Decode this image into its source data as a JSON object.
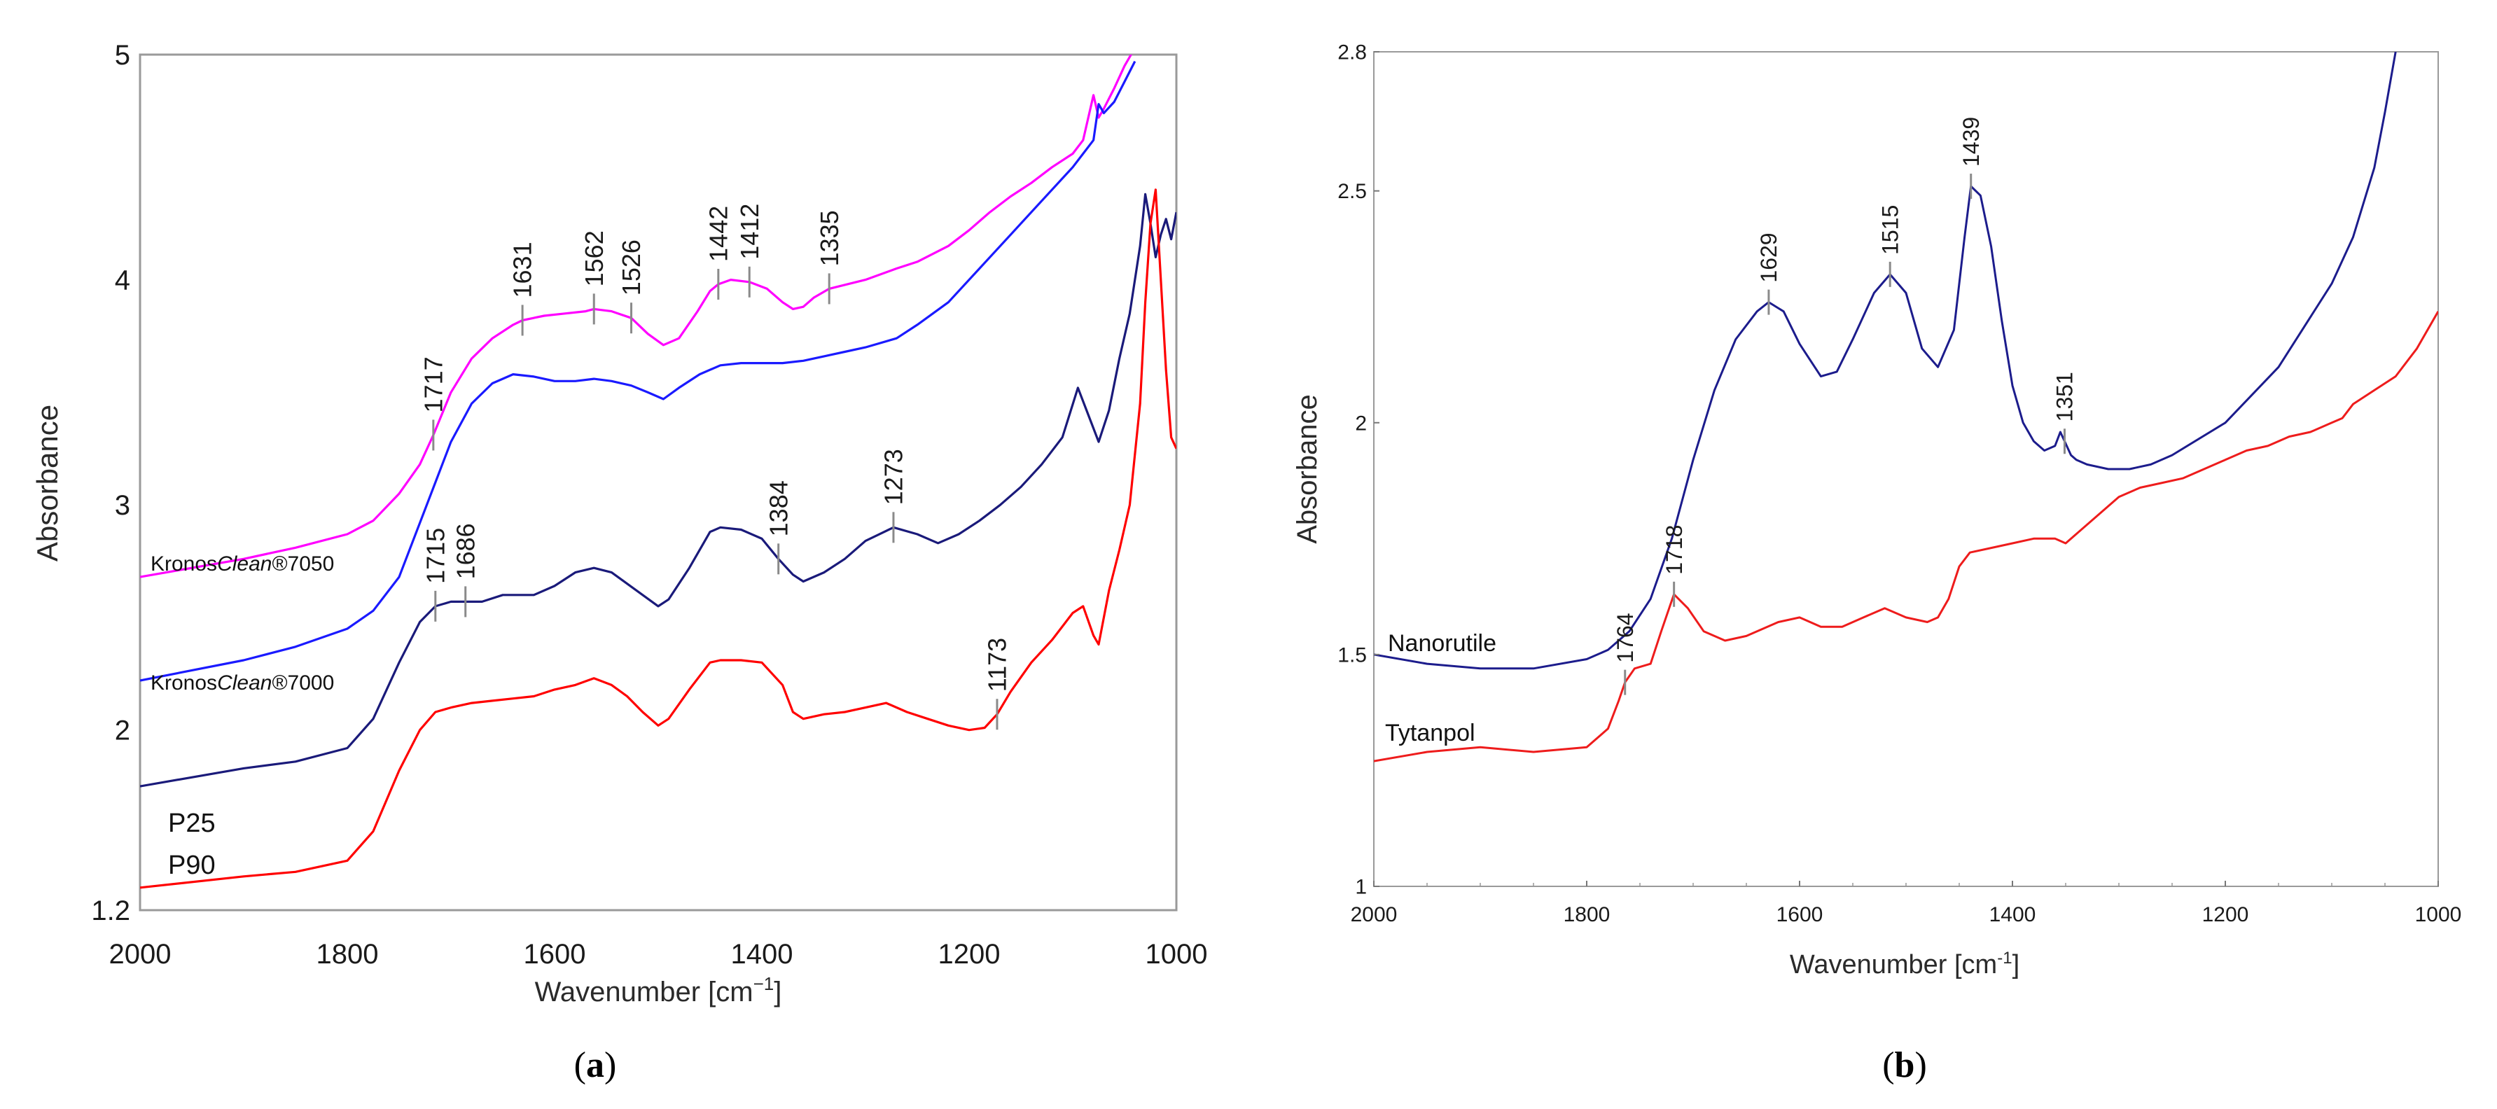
{
  "panels": [
    {
      "caption_open": "(",
      "caption": "a",
      "caption_close": ")",
      "chart_data": {
        "type": "line",
        "xlabel": "Wavenumber [cm",
        "xlabel_sup": "−1",
        "xlabel_end": "]",
        "ylabel": "Absorbance",
        "xlim": [
          2000,
          1000
        ],
        "ylim": [
          1.2,
          5
        ],
        "x_ticks": [
          "2000",
          "1800",
          "1600",
          "1400",
          "1200",
          "1000"
        ],
        "y_ticks": [
          {
            "value": 1.2,
            "label": "1.2"
          },
          {
            "value": 2,
            "label": "2"
          },
          {
            "value": 3,
            "label": "3"
          },
          {
            "value": 4,
            "label": "4"
          },
          {
            "value": 5,
            "label": "5"
          }
        ],
        "series": [
          {
            "name": "KronosClean®7050",
            "color": "#ff00ff",
            "label": {
              "pre": "Kronos",
              "italic": "Clean",
              "post": "®7050"
            },
            "x": [
              2000,
              1900,
              1850,
              1800,
              1775,
              1750,
              1730,
              1717,
              1700,
              1680,
              1660,
              1640,
              1631,
              1610,
              1590,
              1570,
              1562,
              1545,
              1526,
              1510,
              1495,
              1480,
              1462,
              1450,
              1442,
              1430,
              1412,
              1395,
              1380,
              1370,
              1360,
              1350,
              1335,
              1300,
              1270,
              1250,
              1220,
              1200,
              1180,
              1160,
              1140,
              1120,
              1100,
              1090,
              1080,
              1075,
              1070,
              1060,
              1050,
              1040
            ],
            "y": [
              2.68,
              2.76,
              2.81,
              2.87,
              2.93,
              3.05,
              3.18,
              3.31,
              3.5,
              3.65,
              3.74,
              3.8,
              3.82,
              3.84,
              3.85,
              3.86,
              3.87,
              3.86,
              3.83,
              3.76,
              3.71,
              3.74,
              3.86,
              3.95,
              3.98,
              4.0,
              3.99,
              3.96,
              3.9,
              3.87,
              3.88,
              3.92,
              3.96,
              4.0,
              4.05,
              4.08,
              4.15,
              4.22,
              4.3,
              4.37,
              4.43,
              4.5,
              4.56,
              4.62,
              4.82,
              4.72,
              4.76,
              4.85,
              4.95,
              5.03
            ]
          },
          {
            "name": "KronosClean®7000",
            "color": "#1a1aff",
            "label": {
              "pre": "Kronos",
              "italic": "Clean",
              "post": "®7000"
            },
            "x": [
              2000,
              1900,
              1850,
              1800,
              1775,
              1750,
              1730,
              1715,
              1700,
              1680,
              1660,
              1640,
              1620,
              1600,
              1580,
              1562,
              1545,
              1526,
              1510,
              1495,
              1480,
              1460,
              1440,
              1420,
              1412,
              1395,
              1380,
              1360,
              1340,
              1320,
              1300,
              1270,
              1250,
              1220,
              1200,
              1180,
              1160,
              1140,
              1120,
              1100,
              1090,
              1080,
              1075,
              1070,
              1060,
              1050,
              1040
            ],
            "y": [
              2.22,
              2.31,
              2.37,
              2.45,
              2.53,
              2.68,
              2.92,
              3.1,
              3.28,
              3.45,
              3.54,
              3.58,
              3.57,
              3.55,
              3.55,
              3.56,
              3.55,
              3.53,
              3.5,
              3.47,
              3.52,
              3.58,
              3.62,
              3.63,
              3.63,
              3.63,
              3.63,
              3.64,
              3.66,
              3.68,
              3.7,
              3.74,
              3.8,
              3.9,
              4.0,
              4.1,
              4.2,
              4.3,
              4.4,
              4.5,
              4.56,
              4.62,
              4.78,
              4.74,
              4.79,
              4.88,
              4.97
            ]
          },
          {
            "name": "P25",
            "color": "#1a1a7a",
            "label": {
              "pre": "P25",
              "italic": "",
              "post": ""
            },
            "x": [
              2000,
              1900,
              1850,
              1800,
              1775,
              1750,
              1730,
              1715,
              1700,
              1686,
              1670,
              1650,
              1620,
              1600,
              1580,
              1562,
              1545,
              1530,
              1515,
              1500,
              1490,
              1470,
              1450,
              1440,
              1420,
              1400,
              1384,
              1370,
              1360,
              1340,
              1320,
              1300,
              1273,
              1250,
              1230,
              1210,
              1190,
              1170,
              1150,
              1130,
              1110,
              1095,
              1085,
              1075,
              1065,
              1055,
              1045,
              1035,
              1030,
              1025,
              1020,
              1015,
              1010,
              1005,
              1000
            ],
            "y": [
              1.75,
              1.83,
              1.86,
              1.92,
              2.05,
              2.3,
              2.48,
              2.55,
              2.57,
              2.57,
              2.57,
              2.6,
              2.6,
              2.64,
              2.7,
              2.72,
              2.7,
              2.65,
              2.6,
              2.55,
              2.58,
              2.72,
              2.88,
              2.9,
              2.89,
              2.85,
              2.76,
              2.69,
              2.66,
              2.7,
              2.76,
              2.84,
              2.9,
              2.87,
              2.83,
              2.87,
              2.93,
              3.0,
              3.08,
              3.18,
              3.3,
              3.52,
              3.4,
              3.28,
              3.42,
              3.65,
              3.85,
              4.15,
              4.38,
              4.25,
              4.1,
              4.2,
              4.27,
              4.18,
              4.3
            ]
          },
          {
            "name": "P90",
            "color": "#ff0000",
            "label": {
              "pre": "P90",
              "italic": "",
              "post": ""
            },
            "x": [
              2000,
              1900,
              1850,
              1800,
              1775,
              1750,
              1730,
              1715,
              1700,
              1680,
              1660,
              1640,
              1620,
              1600,
              1580,
              1562,
              1545,
              1530,
              1515,
              1500,
              1490,
              1470,
              1450,
              1440,
              1420,
              1400,
              1380,
              1370,
              1360,
              1340,
              1320,
              1300,
              1280,
              1260,
              1240,
              1220,
              1200,
              1185,
              1173,
              1160,
              1140,
              1120,
              1100,
              1090,
              1080,
              1075,
              1065,
              1055,
              1045,
              1035,
              1030,
              1025,
              1020,
              1015,
              1010,
              1005,
              1000
            ],
            "y": [
              1.3,
              1.35,
              1.37,
              1.42,
              1.55,
              1.82,
              2.0,
              2.08,
              2.1,
              2.12,
              2.13,
              2.14,
              2.15,
              2.18,
              2.2,
              2.23,
              2.2,
              2.15,
              2.08,
              2.02,
              2.05,
              2.18,
              2.3,
              2.31,
              2.31,
              2.3,
              2.2,
              2.08,
              2.05,
              2.07,
              2.08,
              2.1,
              2.12,
              2.08,
              2.05,
              2.02,
              2.0,
              2.01,
              2.07,
              2.17,
              2.3,
              2.4,
              2.52,
              2.55,
              2.42,
              2.38,
              2.62,
              2.8,
              3.0,
              3.45,
              3.9,
              4.25,
              4.4,
              4.0,
              3.6,
              3.3,
              3.25
            ]
          }
        ],
        "annotations": [
          {
            "series": "KronosClean®7050",
            "x": 1717,
            "label": "1717"
          },
          {
            "series": "KronosClean®7050",
            "x": 1631,
            "label": "1631"
          },
          {
            "series": "KronosClean®7050",
            "x": 1562,
            "label": "1562"
          },
          {
            "series": "KronosClean®7050",
            "x": 1526,
            "label": "1526"
          },
          {
            "series": "KronosClean®7050",
            "x": 1442,
            "label": "1442"
          },
          {
            "series": "KronosClean®7050",
            "x": 1412,
            "label": "1412"
          },
          {
            "series": "KronosClean®7050",
            "x": 1335,
            "label": "1335"
          },
          {
            "series": "P25",
            "x": 1715,
            "label": "1715"
          },
          {
            "series": "P25",
            "x": 1686,
            "label": "1686"
          },
          {
            "series": "P25",
            "x": 1384,
            "label": "1384"
          },
          {
            "series": "P25",
            "x": 1273,
            "label": "1273"
          },
          {
            "series": "P90",
            "x": 1173,
            "label": "1173"
          }
        ]
      }
    },
    {
      "caption_open": "(",
      "caption": "b",
      "caption_close": ")",
      "chart_data": {
        "type": "line",
        "xlabel": "Wavenumber [cm",
        "xlabel_sup": "-1",
        "xlabel_end": "]",
        "ylabel": "Absorbance",
        "xlim": [
          2000,
          1000
        ],
        "ylim": [
          1,
          2.8
        ],
        "x_ticks": [
          "2000",
          "1800",
          "1600",
          "1400",
          "1200",
          "1000"
        ],
        "y_ticks": [
          {
            "value": 1,
            "label": "1"
          },
          {
            "value": 1.5,
            "label": "1.5"
          },
          {
            "value": 2,
            "label": "2"
          },
          {
            "value": 2.5,
            "label": "2.5"
          },
          {
            "value": 2.8,
            "label": "2.8"
          }
        ],
        "series": [
          {
            "name": "Nanorutile",
            "color": "#1c1c8c",
            "label": {
              "pre": "Nanorutile",
              "italic": "",
              "post": ""
            },
            "x": [
              2000,
              1950,
              1900,
              1850,
              1800,
              1780,
              1760,
              1740,
              1720,
              1700,
              1680,
              1660,
              1640,
              1629,
              1615,
              1600,
              1580,
              1565,
              1550,
              1530,
              1515,
              1500,
              1485,
              1470,
              1455,
              1445,
              1439,
              1430,
              1420,
              1410,
              1400,
              1390,
              1380,
              1370,
              1360,
              1355,
              1351,
              1345,
              1340,
              1330,
              1310,
              1290,
              1270,
              1250,
              1200,
              1150,
              1100,
              1080,
              1060,
              1050,
              1040
            ],
            "y": [
              1.5,
              1.48,
              1.47,
              1.47,
              1.49,
              1.51,
              1.55,
              1.62,
              1.75,
              1.92,
              2.07,
              2.18,
              2.24,
              2.26,
              2.24,
              2.17,
              2.1,
              2.11,
              2.18,
              2.28,
              2.32,
              2.28,
              2.16,
              2.12,
              2.2,
              2.4,
              2.51,
              2.49,
              2.38,
              2.22,
              2.08,
              2.0,
              1.96,
              1.94,
              1.95,
              1.98,
              1.96,
              1.93,
              1.92,
              1.91,
              1.9,
              1.9,
              1.91,
              1.93,
              2.0,
              2.12,
              2.3,
              2.4,
              2.55,
              2.67,
              2.8
            ]
          },
          {
            "name": "Tytanpol",
            "color": "#ee1c1c",
            "label": {
              "pre": "Tytanpol",
              "italic": "",
              "post": ""
            },
            "x": [
              2000,
              1950,
              1900,
              1850,
              1800,
              1780,
              1770,
              1764,
              1755,
              1740,
              1730,
              1718,
              1705,
              1690,
              1670,
              1650,
              1620,
              1600,
              1580,
              1560,
              1540,
              1520,
              1500,
              1480,
              1470,
              1460,
              1450,
              1440,
              1420,
              1400,
              1380,
              1360,
              1350,
              1340,
              1320,
              1300,
              1280,
              1260,
              1240,
              1220,
              1200,
              1180,
              1160,
              1140,
              1120,
              1100,
              1090,
              1080,
              1060,
              1040,
              1020,
              1000
            ],
            "y": [
              1.27,
              1.29,
              1.3,
              1.29,
              1.3,
              1.34,
              1.4,
              1.44,
              1.47,
              1.48,
              1.55,
              1.63,
              1.6,
              1.55,
              1.53,
              1.54,
              1.57,
              1.58,
              1.56,
              1.56,
              1.58,
              1.6,
              1.58,
              1.57,
              1.58,
              1.62,
              1.69,
              1.72,
              1.73,
              1.74,
              1.75,
              1.75,
              1.74,
              1.76,
              1.8,
              1.84,
              1.86,
              1.87,
              1.88,
              1.9,
              1.92,
              1.94,
              1.95,
              1.97,
              1.98,
              2.0,
              2.01,
              2.04,
              2.07,
              2.1,
              2.16,
              2.24
            ]
          }
        ],
        "annotations": [
          {
            "series": "Tytanpol",
            "x": 1764,
            "label": "1764"
          },
          {
            "series": "Tytanpol",
            "x": 1718,
            "label": "1718"
          },
          {
            "series": "Nanorutile",
            "x": 1629,
            "label": "1629"
          },
          {
            "series": "Nanorutile",
            "x": 1515,
            "label": "1515"
          },
          {
            "series": "Nanorutile",
            "x": 1439,
            "label": "1439"
          },
          {
            "series": "Nanorutile",
            "x": 1351,
            "label": "1351"
          }
        ]
      }
    }
  ]
}
